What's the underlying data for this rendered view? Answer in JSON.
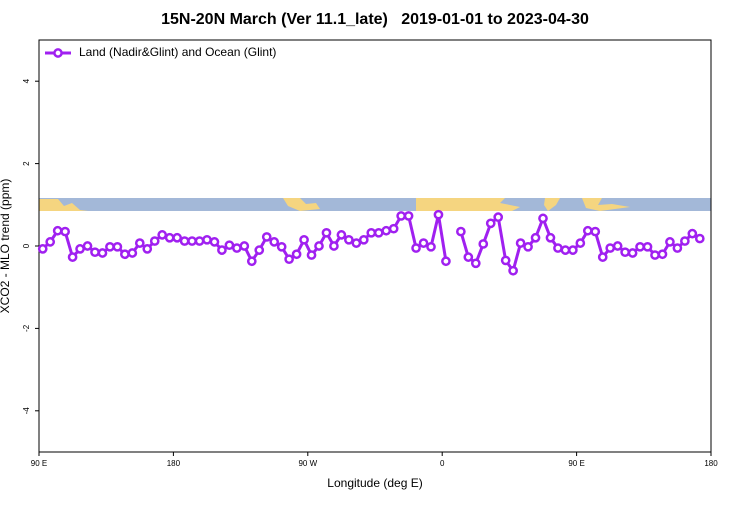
{
  "chart_data": {
    "type": "line",
    "title": "15N-20N March (Ver 11.1_late)   2019-01-01 to 2023-04-30",
    "x_label": "Longitude (deg E)",
    "y_label": "XCO2 - MLO trend (ppm)",
    "xlim": [
      90,
      540
    ],
    "xticks": [
      {
        "value": 90,
        "label": "90 E"
      },
      180,
      {
        "value": 270,
        "label": "90 W"
      },
      {
        "value": 360,
        "label": "0"
      },
      {
        "value": 450,
        "label": "90 E"
      },
      {
        "value": 540,
        "label": "180"
      }
    ],
    "ylim": [
      -5,
      5
    ],
    "yticks": [
      -4,
      -2,
      0,
      2,
      4
    ],
    "legend": "upper left",
    "x": [
      92.5,
      97.5,
      102.5,
      107.5,
      112.5,
      117.5,
      122.5,
      127.5,
      132.5,
      137.5,
      142.5,
      147.5,
      152.5,
      157.5,
      162.5,
      167.5,
      172.5,
      177.5,
      182.5,
      187.5,
      192.5,
      197.5,
      202.5,
      207.5,
      212.5,
      217.5,
      222.5,
      227.5,
      232.5,
      237.5,
      242.5,
      247.5,
      252.5,
      257.5,
      262.5,
      267.5,
      272.5,
      277.5,
      282.5,
      287.5,
      292.5,
      297.5,
      302.5,
      307.5,
      312.5,
      317.5,
      322.5,
      327.5,
      332.5,
      337.5,
      342.5,
      347.5,
      352.5,
      357.5,
      362.5,
      367.5,
      372.5,
      377.5,
      382.5,
      387.5,
      392.5,
      397.5,
      402.5,
      407.5,
      412.5,
      417.5,
      422.5,
      427.5,
      432.5,
      437.5,
      442.5,
      447.5,
      452.5,
      457.5,
      462.5,
      467.5,
      472.5,
      477.5,
      482.5,
      487.5,
      492.5,
      497.5,
      502.5,
      507.5,
      512.5,
      517.5,
      522.5,
      527.5,
      532.5
    ],
    "series": [
      {
        "name": "Land (Nadir&Glint) and Ocean (Glint)",
        "color": "#a020f0",
        "values": [
          -0.07,
          0.1,
          0.37,
          0.35,
          -0.27,
          -0.07,
          0,
          -0.15,
          -0.17,
          -0.02,
          -0.02,
          -0.2,
          -0.17,
          0.07,
          -0.07,
          0.12,
          0.27,
          0.2,
          0.2,
          0.12,
          0.12,
          0.12,
          0.15,
          0.1,
          -0.1,
          0.02,
          -0.05,
          0,
          -0.37,
          -0.1,
          0.22,
          0.1,
          -0.02,
          -0.32,
          -0.2,
          0.15,
          -0.22,
          0,
          0.32,
          0,
          0.27,
          0.15,
          0.07,
          0.15,
          0.32,
          0.32,
          0.37,
          0.42,
          0.73,
          0.73,
          -0.05,
          0.07,
          -0.02,
          0.76,
          -0.37,
          null,
          0.35,
          -0.27,
          -0.42,
          0.05,
          0.55,
          0.7,
          -0.35,
          -0.6,
          0.07,
          -0.02,
          0.2,
          0.67,
          0.2,
          -0.05,
          -0.1,
          -0.1,
          0.07,
          0.37,
          0.35,
          -0.27,
          -0.05,
          0,
          -0.15,
          -0.17,
          -0.02,
          -0.02,
          -0.22,
          -0.2,
          0.1,
          -0.05,
          0.12,
          0.3,
          0.18
        ]
      }
    ]
  }
}
